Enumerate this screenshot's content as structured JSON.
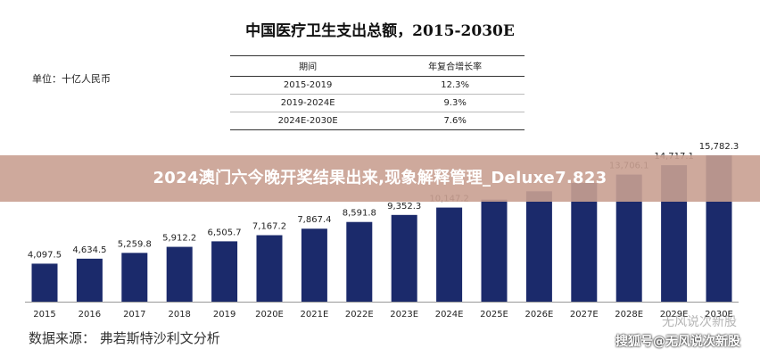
{
  "title": "中国医疗卫生支出总额，2015-2030E",
  "unit_label": "单位：十亿人民币",
  "cagr_table": {
    "headers": [
      "期间",
      "年复合增长率"
    ],
    "rows": [
      [
        "2015-2019",
        "12.3%"
      ],
      [
        "2019-2024E",
        "9.3%"
      ],
      [
        "2024E-2030E",
        "7.6%"
      ]
    ]
  },
  "banner_text": "2024澳门六今晚开奖结果出来,现象解释管理_Deluxe7.823",
  "source": "数据来源：  弗若斯特沙利文分析",
  "watermark": "搜狐号@无风说次新股",
  "watermark_faint": "无风说次新股",
  "colors": {
    "bar": "#1b2a6b",
    "label": "#222222"
  },
  "chart_data": {
    "type": "bar",
    "categories": [
      "2015",
      "2016",
      "2017",
      "2018",
      "2019",
      "2020E",
      "2021E",
      "2022E",
      "2023E",
      "2024E",
      "2025E",
      "2026E",
      "2027E",
      "2028E",
      "2029E",
      "2030E"
    ],
    "values": [
      4097.5,
      4634.5,
      5259.8,
      5912.2,
      6505.7,
      7167.2,
      7867.4,
      8591.8,
      9352.3,
      10147.2,
      11000,
      11900,
      12800,
      13706.1,
      14717.1,
      15782.3
    ],
    "value_labels": [
      "4,097.5",
      "4,634.5",
      "5,259.8",
      "5,912.2",
      "6,505.7",
      "7,167.2",
      "7,867.4",
      "8,591.8",
      "9,352.3",
      "10,147.2",
      "",
      "",
      "",
      "13,706.1",
      "14,717.1",
      "15,782.3"
    ],
    "ylim": [
      0,
      16000
    ],
    "grid": false
  }
}
